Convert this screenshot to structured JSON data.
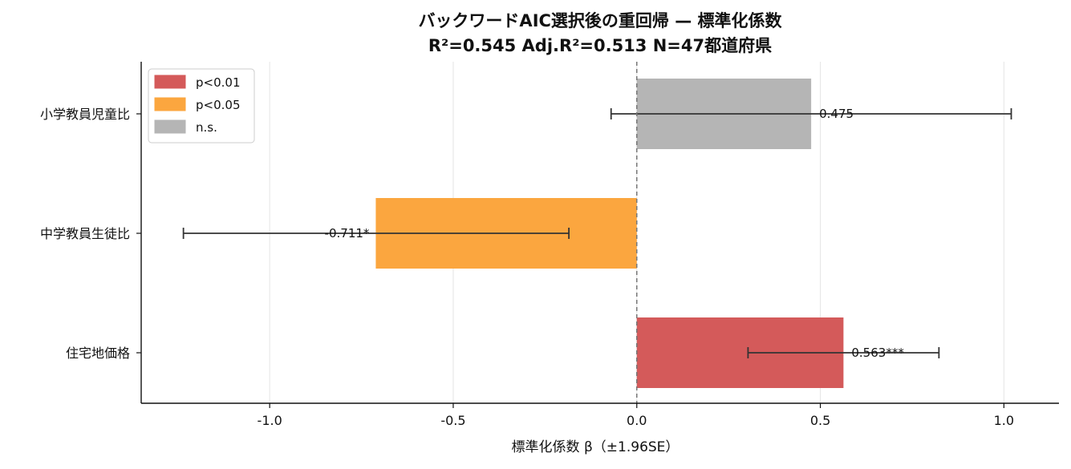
{
  "chart_data": {
    "type": "bar",
    "orientation": "horizontal",
    "title_line1": "バックワードAIC選択後の重回帰 — 標準化係数",
    "title_line2": "R²=0.545  Adj.R²=0.513  N=47都道府県",
    "xlabel": "標準化係数 β（±1.96SE）",
    "ylabel": "",
    "xlim": [
      -1.35,
      1.15
    ],
    "xticks": [
      -1.0,
      -0.5,
      0.0,
      0.5,
      1.0
    ],
    "xtick_labels": [
      "-1.0",
      "-0.5",
      "0.0",
      "0.5",
      "1.0"
    ],
    "grid": "vertical",
    "legend_position": "top-left",
    "legend": [
      {
        "label": "p<0.01",
        "color": "#d45a5a"
      },
      {
        "label": "p<0.05",
        "color": "#fba63f"
      },
      {
        "label": "n.s.",
        "color": "#b5b5b5"
      }
    ],
    "bars": [
      {
        "category": "小学教員児童比",
        "value": 0.475,
        "ci_low": -0.07,
        "ci_high": 1.02,
        "label": "0.475",
        "significance": "n.s.",
        "color": "#b5b5b5"
      },
      {
        "category": "中学教員生徒比",
        "value": -0.711,
        "ci_low": -1.235,
        "ci_high": -0.185,
        "label": "-0.711*",
        "significance": "p<0.05",
        "color": "#fba63f"
      },
      {
        "category": "住宅地価格",
        "value": 0.563,
        "ci_low": 0.303,
        "ci_high": 0.823,
        "label": "0.563***",
        "significance": "p<0.01",
        "color": "#d45a5a"
      }
    ]
  }
}
